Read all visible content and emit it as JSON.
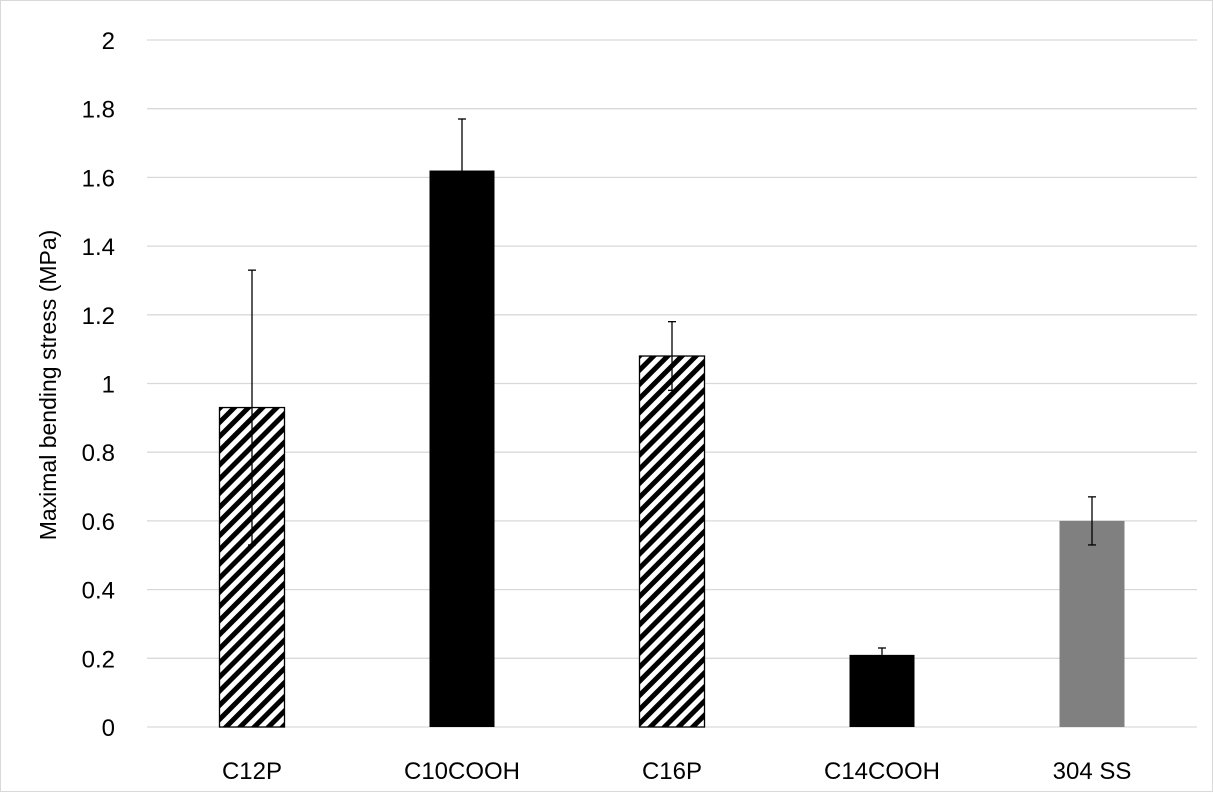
{
  "chart_data": {
    "type": "bar",
    "title": "",
    "xlabel": "",
    "ylabel": "Maximal bending stress (MPa)",
    "ylim": [
      0,
      2
    ],
    "yticks": [
      0,
      0.2,
      0.4,
      0.6,
      0.8,
      1,
      1.2,
      1.4,
      1.6,
      1.8,
      2
    ],
    "ytick_labels": [
      "0",
      "0.2",
      "0.4",
      "0.6",
      "0.8",
      "1",
      "1.2",
      "1.4",
      "1.6",
      "1.8",
      "2"
    ],
    "grid": true,
    "legend": "none",
    "categories": [
      "C12P",
      "C10COOH",
      "C16P",
      "C14COOH",
      "304 SS"
    ],
    "values": [
      0.93,
      1.62,
      1.08,
      0.21,
      0.6
    ],
    "error_plus": [
      0.4,
      0.15,
      0.1,
      0.02,
      0.07
    ],
    "error_minus": [
      0.4,
      0.0,
      0.1,
      0.0,
      0.07
    ],
    "fills": [
      "hatched",
      "#000000",
      "hatched",
      "#000000",
      "#808080"
    ]
  }
}
